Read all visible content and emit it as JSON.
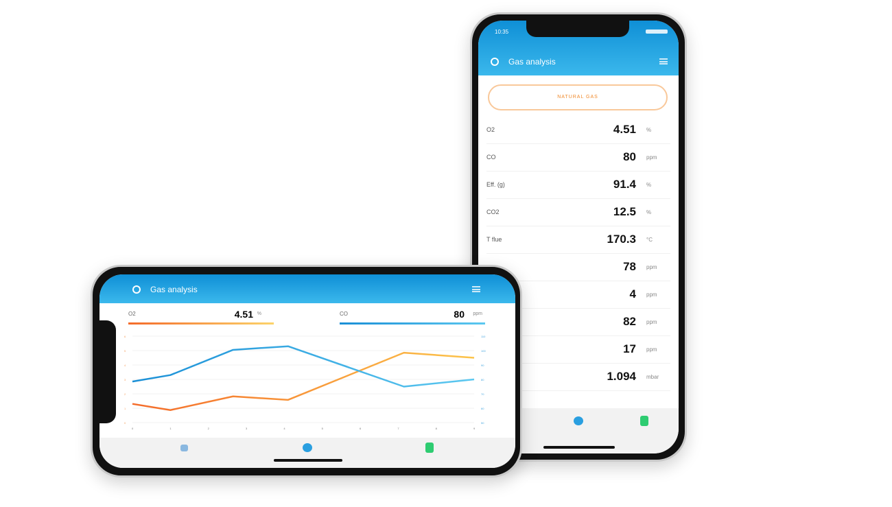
{
  "portrait": {
    "status_time": "10:35",
    "title": "Gas analysis",
    "fuel_button": "NATURAL GAS",
    "rows": [
      {
        "label": "O2",
        "value": "4.51",
        "unit": "%"
      },
      {
        "label": "CO",
        "value": "80",
        "unit": "ppm"
      },
      {
        "label": "Eff. (g)",
        "value": "91.4",
        "unit": "%"
      },
      {
        "label": "CO2",
        "value": "12.5",
        "unit": "%"
      },
      {
        "label": "T flue",
        "value": "170.3",
        "unit": "°C"
      },
      {
        "label": "",
        "value": "78",
        "unit": "ppm"
      },
      {
        "label": "",
        "value": "4",
        "unit": "ppm"
      },
      {
        "label": "",
        "value": "82",
        "unit": "ppm"
      },
      {
        "label": "",
        "value": "17",
        "unit": "ppm"
      },
      {
        "label": "",
        "value": "1.094",
        "unit": "mbar"
      }
    ],
    "tabs": [
      {
        "icon": "analyzer-icon",
        "color": "#2a9fe0"
      },
      {
        "icon": "print-icon",
        "color": "#2ecc71"
      }
    ]
  },
  "landscape": {
    "title": "Gas analysis",
    "readouts": [
      {
        "label": "O2",
        "value": "4.51",
        "unit": "%",
        "color_from": "#f46b2a",
        "color_to": "#fcd36a"
      },
      {
        "label": "CO",
        "value": "80",
        "unit": "ppm",
        "color_from": "#1a8fd6",
        "color_to": "#5cc8f0"
      }
    ],
    "tabs": [
      {
        "icon": "list-icon",
        "color": "#8ab8e0"
      },
      {
        "icon": "analyzer-icon",
        "color": "#2a9fe0"
      },
      {
        "icon": "print-icon",
        "color": "#2ecc71"
      }
    ]
  },
  "chart_data": {
    "type": "line",
    "x_ticks": [
      "0",
      "1",
      "2",
      "3",
      "4",
      "5",
      "6",
      "7",
      "8",
      "9"
    ],
    "xlim": [
      0,
      9
    ],
    "y_left_ticks": [
      "0",
      "1",
      "2",
      "3",
      "4",
      "5",
      "6"
    ],
    "y_left_lim": [
      0,
      6
    ],
    "y_right_ticks": [
      "50",
      "60",
      "70",
      "80",
      "90",
      "100",
      "110"
    ],
    "y_right_lim": [
      50,
      110
    ],
    "grid": true,
    "series": [
      {
        "axis": "left",
        "color_from": "#f46b2a",
        "color_to": "#fcc44a",
        "points": [
          [
            0,
            1.3
          ],
          [
            1,
            0.87
          ],
          [
            2.65,
            1.82
          ],
          [
            4.1,
            1.58
          ],
          [
            7.15,
            4.85
          ],
          [
            9,
            4.5
          ]
        ]
      },
      {
        "axis": "right",
        "color_from": "#1a8fd6",
        "color_to": "#5cc8f0",
        "points": [
          [
            0,
            78.5
          ],
          [
            1,
            83
          ],
          [
            2.65,
            100.5
          ],
          [
            4.1,
            103
          ],
          [
            7.15,
            75
          ],
          [
            9,
            80
          ]
        ]
      }
    ]
  }
}
